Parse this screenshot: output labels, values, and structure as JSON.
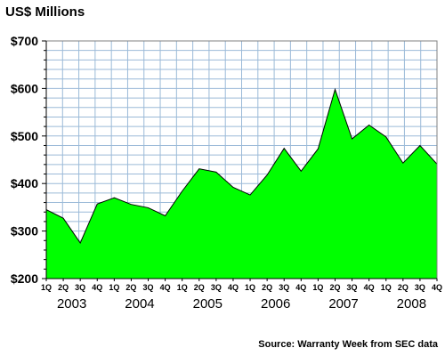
{
  "chart_data": {
    "type": "area",
    "title": "US$ Millions",
    "source": "Source: Warranty Week from SEC data",
    "ylim": [
      200,
      700
    ],
    "y_ticks": [
      200,
      300,
      400,
      500,
      600,
      700
    ],
    "y_tick_labels": [
      "$200",
      "$300",
      "$400",
      "$500",
      "$600",
      "$700"
    ],
    "grid": true,
    "x": [
      "1Q",
      "2Q",
      "3Q",
      "4Q",
      "1Q",
      "2Q",
      "3Q",
      "4Q",
      "1Q",
      "2Q",
      "3Q",
      "4Q",
      "1Q",
      "2Q",
      "3Q",
      "4Q",
      "1Q",
      "2Q",
      "3Q",
      "4Q",
      "1Q",
      "2Q",
      "3Q",
      "4Q"
    ],
    "years": [
      "2003",
      "2004",
      "2005",
      "2006",
      "2007",
      "2008"
    ],
    "series": [
      {
        "values": [
          345,
          327,
          275,
          357,
          370,
          356,
          349,
          332,
          384,
          431,
          424,
          392,
          376,
          418,
          474,
          426,
          473,
          598,
          494,
          523,
          498,
          443,
          480,
          441
        ]
      }
    ],
    "colors": {
      "fill": "#00ff00",
      "line": "#000000",
      "grid": "#9bbad8",
      "axis": "#000000"
    }
  }
}
